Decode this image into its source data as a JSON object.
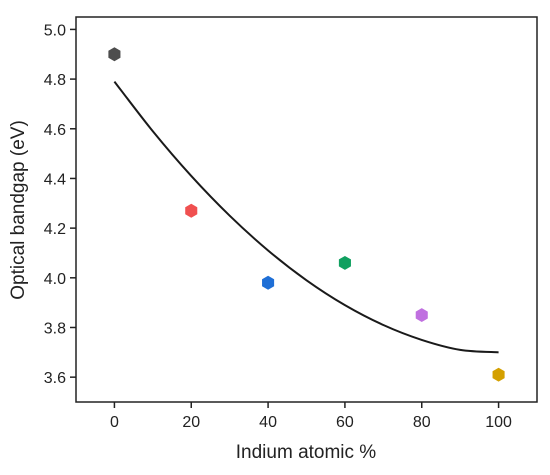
{
  "chart_data": {
    "type": "scatter",
    "title": "",
    "xlabel": "Indium atomic %",
    "ylabel": "Optical bandgap (eV)",
    "xlim": [
      -10,
      110
    ],
    "ylim": [
      3.5,
      5.05
    ],
    "x_ticks": [
      0,
      20,
      40,
      60,
      80,
      100
    ],
    "x_tick_labels": [
      "0",
      "20",
      "40",
      "60",
      "80",
      "100"
    ],
    "y_ticks": [
      3.6,
      3.8,
      4.0,
      4.2,
      4.4,
      4.6,
      4.8,
      5.0
    ],
    "y_tick_labels": [
      "3.6",
      "3.8",
      "4.0",
      "4.2",
      "4.4",
      "4.6",
      "4.8",
      "5.0"
    ],
    "grid": false,
    "legend": false,
    "marker": "hexagon",
    "points": [
      {
        "x": 0,
        "y": 4.9,
        "color": "#4d4d4d"
      },
      {
        "x": 20,
        "y": 4.27,
        "color": "#f05050"
      },
      {
        "x": 40,
        "y": 3.98,
        "color": "#1f6fd6"
      },
      {
        "x": 60,
        "y": 4.06,
        "color": "#10a060"
      },
      {
        "x": 80,
        "y": 3.85,
        "color": "#c070e0"
      },
      {
        "x": 100,
        "y": 3.61,
        "color": "#d4a000"
      }
    ],
    "fit_line": {
      "type": "line",
      "color": "#1a1a1a",
      "x": [
        0,
        10,
        20,
        30,
        40,
        50,
        60,
        70,
        80,
        90,
        100
      ],
      "y": [
        4.79,
        4.59,
        4.41,
        4.25,
        4.11,
        3.99,
        3.89,
        3.81,
        3.75,
        3.71,
        3.7
      ]
    }
  }
}
